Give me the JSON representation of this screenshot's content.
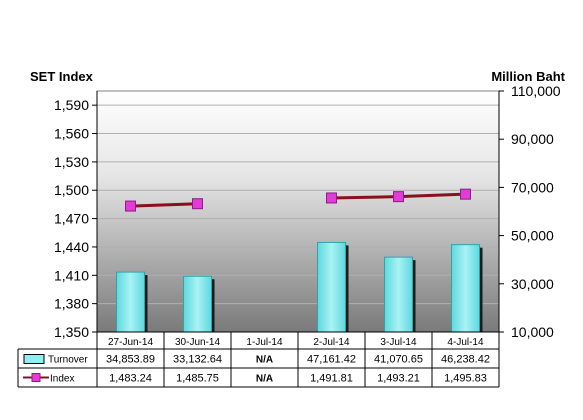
{
  "chart_data": {
    "type": "bar",
    "left_axis_label": "SET Index",
    "right_axis_label": "Million Baht",
    "categories": [
      "27-Jun-14",
      "30-Jun-14",
      "1-Jul-14",
      "2-Jul-14",
      "3-Jul-14",
      "4-Jul-14"
    ],
    "left_ticks": [
      "1,590",
      "1,560",
      "1,530",
      "1,500",
      "1,470",
      "1,440",
      "1,410",
      "1,380",
      "1,350"
    ],
    "right_ticks": [
      "110,000",
      "90,000",
      "70,000",
      "50,000",
      "30,000",
      "10,000"
    ],
    "left_ylim": [
      1350,
      1605
    ],
    "right_ylim": [
      10000,
      110000
    ],
    "series": [
      {
        "name": "Turnover",
        "type": "bar",
        "axis": "right",
        "color": "#6fe3e8",
        "values": [
          34853.89,
          33132.64,
          null,
          47161.42,
          41070.65,
          46238.42
        ],
        "labels": [
          "34,853.89",
          "33,132.64",
          "N/A",
          "47,161.42",
          "41,070.65",
          "46,238.42"
        ]
      },
      {
        "name": "Index",
        "type": "line",
        "axis": "left",
        "color": "#8b0f1e",
        "marker_color": "#e23bd8",
        "values": [
          1483.24,
          1485.75,
          null,
          1491.81,
          1493.21,
          1495.83
        ],
        "labels": [
          "1,483.24",
          "1,485.75",
          "N/A",
          "1,491.81",
          "1,493.21",
          "1,495.83"
        ]
      }
    ],
    "grid": true,
    "legend": "table-bottom"
  }
}
